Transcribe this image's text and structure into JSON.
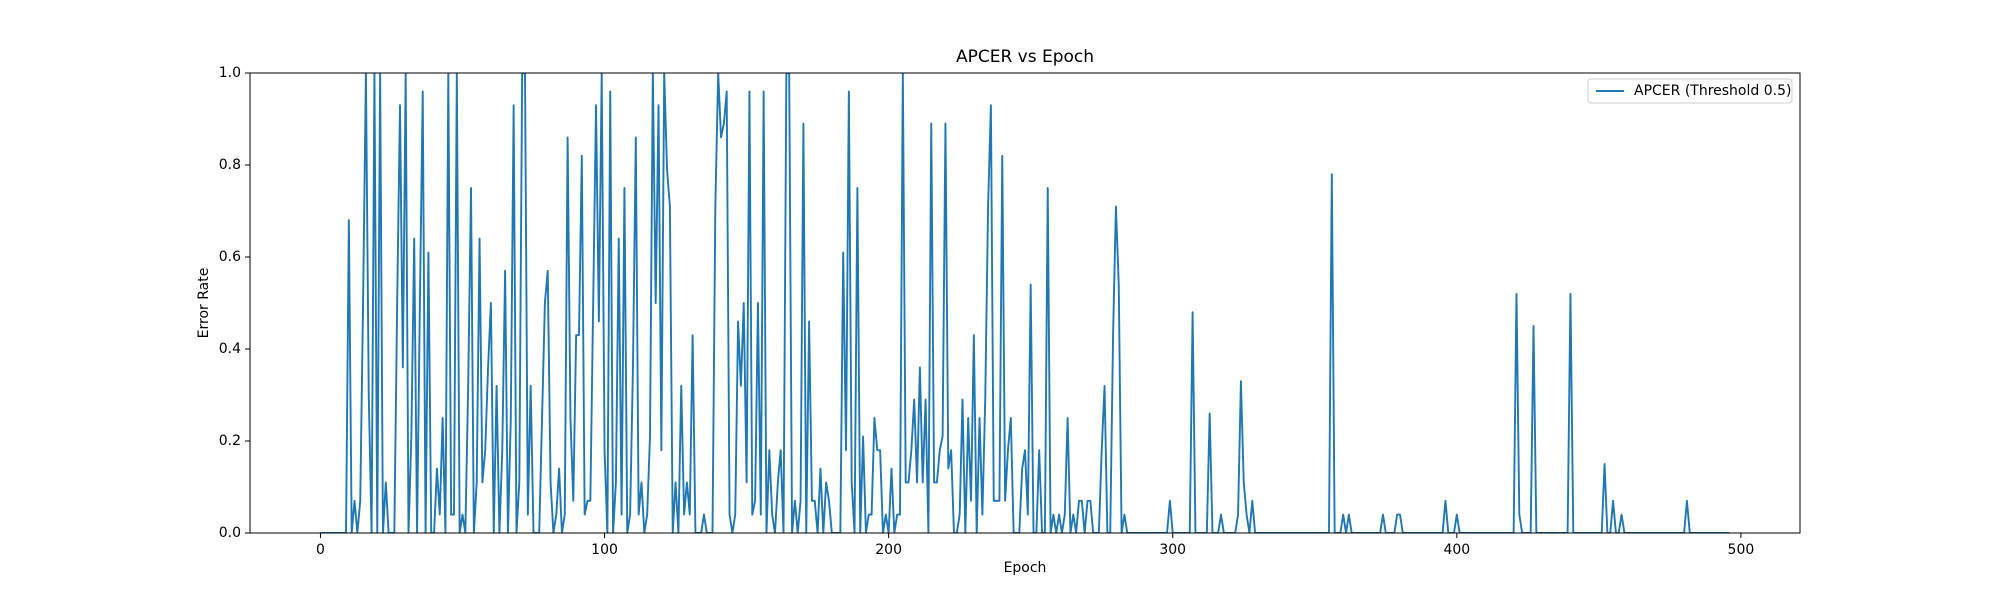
{
  "chart_data": {
    "type": "line",
    "title": "APCER vs Epoch",
    "xlabel": "Epoch",
    "ylabel": "Error Rate",
    "legend": "upper right",
    "xlim": [
      -24.8,
      520.8
    ],
    "xticks": [
      0,
      100,
      200,
      300,
      400,
      500
    ],
    "ylim": [
      0,
      1
    ],
    "yticks": [
      {
        "value": 0,
        "label": "0.0"
      },
      0.2,
      0.4,
      0.6,
      0.8,
      {
        "value": 1,
        "label": "1.0"
      }
    ],
    "x": [
      0,
      9,
      10,
      11,
      12,
      13,
      14,
      15,
      16,
      17,
      18,
      19,
      20,
      21,
      22,
      23,
      24,
      25,
      26,
      27,
      28,
      29,
      30,
      31,
      32,
      33,
      34,
      35,
      36,
      37,
      38,
      39,
      40,
      41,
      42,
      43,
      44,
      45,
      46,
      47,
      48,
      49,
      50,
      51,
      52,
      53,
      54,
      55,
      56,
      57,
      58,
      59,
      60,
      61,
      62,
      63,
      64,
      65,
      66,
      67,
      68,
      69,
      70,
      71,
      72,
      73,
      74,
      75,
      76,
      77,
      78,
      79,
      80,
      81,
      82,
      83,
      84,
      85,
      86,
      87,
      88,
      89,
      90,
      91,
      92,
      93,
      94,
      95,
      96,
      97,
      98,
      99,
      100,
      101,
      102,
      103,
      104,
      105,
      106,
      107,
      108,
      109,
      110,
      111,
      112,
      113,
      114,
      115,
      116,
      117,
      118,
      119,
      120,
      121,
      122,
      123,
      124,
      125,
      126,
      127,
      128,
      129,
      130,
      131,
      132,
      133,
      134,
      135,
      136,
      137,
      138,
      139,
      140,
      141,
      142,
      143,
      144,
      145,
      146,
      147,
      148,
      149,
      150,
      151,
      152,
      153,
      154,
      155,
      156,
      157,
      158,
      159,
      160,
      161,
      162,
      163,
      164,
      165,
      166,
      167,
      168,
      169,
      170,
      171,
      172,
      173,
      174,
      175,
      176,
      177,
      178,
      179,
      180,
      181,
      182,
      183,
      184,
      185,
      186,
      187,
      188,
      189,
      190,
      191,
      192,
      193,
      194,
      195,
      196,
      197,
      198,
      199,
      200,
      201,
      202,
      203,
      204,
      205,
      206,
      207,
      208,
      209,
      210,
      211,
      212,
      213,
      214,
      215,
      216,
      217,
      218,
      219,
      220,
      221,
      222,
      223,
      224,
      225,
      226,
      227,
      228,
      229,
      230,
      231,
      232,
      233,
      234,
      235,
      236,
      237,
      238,
      239,
      240,
      241,
      242,
      243,
      244,
      245,
      246,
      247,
      248,
      249,
      250,
      251,
      252,
      253,
      254,
      255,
      256,
      257,
      258,
      259,
      260,
      261,
      262,
      263,
      264,
      265,
      266,
      267,
      268,
      269,
      270,
      271,
      272,
      273,
      274,
      275,
      276,
      277,
      278,
      279,
      280,
      281,
      282,
      283,
      284,
      285,
      298,
      299,
      300,
      306,
      307,
      308,
      312,
      313,
      314,
      316,
      317,
      318,
      322,
      323,
      324,
      325,
      326,
      327,
      328,
      329,
      355,
      356,
      357,
      359,
      360,
      361,
      362,
      363,
      373,
      374,
      375,
      378,
      379,
      380,
      381,
      395,
      396,
      397,
      399,
      400,
      401,
      420,
      421,
      422,
      423,
      426,
      427,
      428,
      439,
      440,
      441,
      451,
      452,
      453,
      454,
      455,
      456,
      457,
      458,
      459,
      480,
      481,
      482,
      496
    ],
    "series": [
      {
        "name": "APCER (Threshold 0.5)",
        "color": "#1f77b4",
        "values": [
          0,
          0,
          0.68,
          0,
          0.07,
          0,
          0.07,
          0.5,
          1.0,
          0.3,
          0,
          1.0,
          0,
          1.0,
          0,
          0.11,
          0,
          0,
          0,
          0.5,
          0.93,
          0.36,
          1.0,
          0,
          0.21,
          0.64,
          0,
          0.5,
          0.96,
          0,
          0.61,
          0,
          0,
          0.14,
          0.04,
          0.25,
          0,
          1.0,
          0.04,
          0.04,
          1.0,
          0,
          0.04,
          0,
          0.32,
          0.75,
          0,
          0.11,
          0.64,
          0.11,
          0.18,
          0.36,
          0.5,
          0,
          0.32,
          0,
          0.18,
          0.57,
          0,
          0.25,
          0.93,
          0,
          0.11,
          1.0,
          1.0,
          0.04,
          0.32,
          0,
          0,
          0,
          0.25,
          0.5,
          0.57,
          0.11,
          0,
          0.04,
          0.14,
          0,
          0.04,
          0.86,
          0.25,
          0.07,
          0.43,
          0.43,
          0.82,
          0.04,
          0.07,
          0.07,
          0.5,
          0.93,
          0.46,
          1.0,
          0.18,
          0,
          0.96,
          0,
          0.11,
          0.64,
          0.04,
          0.75,
          0,
          0.04,
          0.36,
          0.86,
          0.04,
          0.11,
          0,
          0.04,
          0.21,
          1.0,
          0.5,
          0.93,
          0.18,
          1.0,
          0.79,
          0.71,
          0,
          0.11,
          0,
          0.32,
          0.04,
          0.11,
          0.04,
          0.43,
          0,
          0,
          0,
          0.04,
          0,
          0,
          0,
          0.71,
          1.0,
          0.86,
          0.89,
          0.96,
          0.04,
          0,
          0.04,
          0.46,
          0.32,
          0.5,
          0.11,
          0.96,
          0.04,
          0.07,
          0.5,
          0.04,
          0.96,
          0,
          0.18,
          0.04,
          0,
          0.11,
          0.18,
          0,
          1.0,
          1.0,
          0,
          0.07,
          0,
          0.07,
          0.89,
          0,
          0.46,
          0.07,
          0.07,
          0,
          0.14,
          0,
          0.11,
          0.07,
          0,
          0,
          0,
          0,
          0.61,
          0.18,
          0.96,
          0.11,
          0,
          0.75,
          0,
          0.21,
          0,
          0.04,
          0.04,
          0.25,
          0.18,
          0.18,
          0,
          0.04,
          0,
          0.14,
          0,
          0.04,
          0.04,
          1.0,
          0.11,
          0.11,
          0.18,
          0.29,
          0.11,
          0.36,
          0.11,
          0.29,
          0,
          0.89,
          0.11,
          0.11,
          0.18,
          0.21,
          0.89,
          0.14,
          0.18,
          0,
          0,
          0.04,
          0.29,
          0,
          0.25,
          0.07,
          0.43,
          0,
          0.25,
          0.04,
          0.29,
          0.71,
          0.93,
          0.07,
          0.07,
          0.07,
          0.82,
          0.07,
          0.18,
          0.25,
          0,
          0,
          0,
          0.14,
          0.18,
          0.04,
          0.54,
          0,
          0,
          0.18,
          0,
          0,
          0.75,
          0,
          0.04,
          0,
          0.04,
          0,
          0.04,
          0.25,
          0,
          0.04,
          0,
          0.07,
          0.07,
          0,
          0.07,
          0.07,
          0,
          0,
          0,
          0.18,
          0.32,
          0,
          0,
          0.43,
          0.71,
          0.54,
          0,
          0.04,
          0,
          0,
          0,
          0.07,
          0,
          0,
          0.48,
          0,
          0,
          0.26,
          0,
          0,
          0.04,
          0,
          0,
          0.04,
          0.33,
          0.11,
          0.04,
          0,
          0.07,
          0,
          0,
          0.78,
          0,
          0,
          0.04,
          0,
          0.04,
          0,
          0,
          0.04,
          0,
          0,
          0.04,
          0.04,
          0,
          0,
          0.07,
          0,
          0,
          0.04,
          0,
          0,
          0.52,
          0.04,
          0,
          0,
          0.45,
          0,
          0,
          0.52,
          0,
          0,
          0.15,
          0,
          0,
          0.07,
          0,
          0,
          0.04,
          0,
          0,
          0.07,
          0,
          0
        ]
      }
    ]
  }
}
